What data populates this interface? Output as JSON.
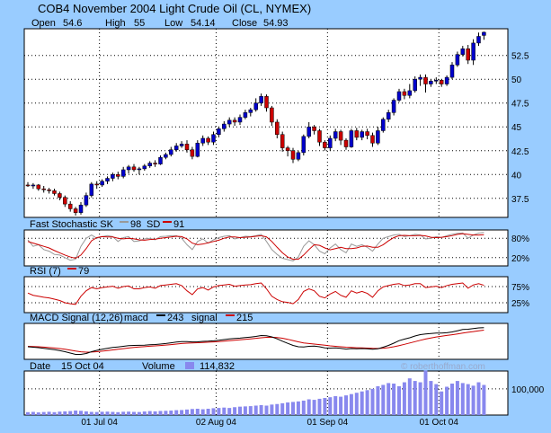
{
  "chart_data": {
    "type": "candlestick",
    "title": "COB4  November 2004 Light Crude Oil (CL, NYMEX)",
    "ohlc_header": {
      "open_label": "Open",
      "open_value": "54.6",
      "high_label": "High",
      "high_value": "55",
      "low_label": "Low",
      "low_value": "54.14",
      "close_label": "Close",
      "close_value": "54.93"
    },
    "price_axis": {
      "ticks": [
        "52.5",
        "50",
        "47.5",
        "45",
        "42.5",
        "40",
        "37.5"
      ],
      "tick_values": [
        52.5,
        50,
        47.5,
        45,
        42.5,
        40,
        37.5
      ],
      "ylim": [
        35.5,
        55.3
      ]
    },
    "x_axis": {
      "ticks": [
        "01 Jul 04",
        "02 Aug 04",
        "01 Sep 04",
        "01 Oct 04"
      ],
      "tick_index": [
        14,
        36,
        57,
        78
      ]
    },
    "candles": [
      [
        38.9,
        38.85,
        39.2,
        38.7
      ],
      [
        38.8,
        38.9,
        39.1,
        38.5
      ],
      [
        38.9,
        38.5,
        39.0,
        38.3
      ],
      [
        38.5,
        38.4,
        38.8,
        38.1
      ],
      [
        38.4,
        38.3,
        38.6,
        38.0
      ],
      [
        38.3,
        38.0,
        38.5,
        37.8
      ],
      [
        38.0,
        37.6,
        38.2,
        37.3
      ],
      [
        37.6,
        36.9,
        37.8,
        36.6
      ],
      [
        36.9,
        36.4,
        37.2,
        36.1
      ],
      [
        36.4,
        36.0,
        36.6,
        35.7
      ],
      [
        36.0,
        36.8,
        37.1,
        35.8
      ],
      [
        36.8,
        37.8,
        38.1,
        36.6
      ],
      [
        37.8,
        39.0,
        39.2,
        37.6
      ],
      [
        39.0,
        38.9,
        39.3,
        38.5
      ],
      [
        38.9,
        39.3,
        39.5,
        38.7
      ],
      [
        39.3,
        39.6,
        39.8,
        39.0
      ],
      [
        39.6,
        40.0,
        40.2,
        39.3
      ],
      [
        40.0,
        39.8,
        40.3,
        39.5
      ],
      [
        39.8,
        40.5,
        40.8,
        39.6
      ],
      [
        40.5,
        40.8,
        41.0,
        40.1
      ],
      [
        40.8,
        40.5,
        41.1,
        40.3
      ],
      [
        40.5,
        40.6,
        40.8,
        40.0
      ],
      [
        40.6,
        40.9,
        41.1,
        40.4
      ],
      [
        40.9,
        41.2,
        41.4,
        40.7
      ],
      [
        41.2,
        41.1,
        41.5,
        40.8
      ],
      [
        41.1,
        41.8,
        42.0,
        41.0
      ],
      [
        41.8,
        42.1,
        42.3,
        41.6
      ],
      [
        42.1,
        42.6,
        42.9,
        41.9
      ],
      [
        42.6,
        43.0,
        43.3,
        42.4
      ],
      [
        43.0,
        43.2,
        43.5,
        42.8
      ],
      [
        43.2,
        42.6,
        43.6,
        42.3
      ],
      [
        42.6,
        41.9,
        42.9,
        41.6
      ],
      [
        41.9,
        43.3,
        43.6,
        41.8
      ],
      [
        43.3,
        43.8,
        44.1,
        43.0
      ],
      [
        43.8,
        43.4,
        44.0,
        43.1
      ],
      [
        43.4,
        44.2,
        44.5,
        43.1
      ],
      [
        44.2,
        44.8,
        45.0,
        43.9
      ],
      [
        44.8,
        45.3,
        45.6,
        44.5
      ],
      [
        45.3,
        45.7,
        46.0,
        45.0
      ],
      [
        45.7,
        45.5,
        46.0,
        45.1
      ],
      [
        45.5,
        46.0,
        46.3,
        45.2
      ],
      [
        46.0,
        46.5,
        46.8,
        45.8
      ],
      [
        46.5,
        46.8,
        47.0,
        46.1
      ],
      [
        46.8,
        47.5,
        48.0,
        46.6
      ],
      [
        47.5,
        48.2,
        48.5,
        47.2
      ],
      [
        48.2,
        47.0,
        48.4,
        46.6
      ],
      [
        47.0,
        45.5,
        47.2,
        45.1
      ],
      [
        45.5,
        44.2,
        45.8,
        43.8
      ],
      [
        44.2,
        42.8,
        44.5,
        42.4
      ],
      [
        42.8,
        42.5,
        43.0,
        41.9
      ],
      [
        42.5,
        41.6,
        42.8,
        41.2
      ],
      [
        41.6,
        42.3,
        42.5,
        41.4
      ],
      [
        42.3,
        44.0,
        44.2,
        42.0
      ],
      [
        44.0,
        45.0,
        45.5,
        43.8
      ],
      [
        45.0,
        44.6,
        45.2,
        44.2
      ],
      [
        44.6,
        43.4,
        44.8,
        43.0
      ],
      [
        43.4,
        42.8,
        43.6,
        42.5
      ],
      [
        42.8,
        43.8,
        44.1,
        42.5
      ],
      [
        43.8,
        44.5,
        44.8,
        43.5
      ],
      [
        44.5,
        43.6,
        44.7,
        43.1
      ],
      [
        43.6,
        42.9,
        43.8,
        42.6
      ],
      [
        42.9,
        44.6,
        44.8,
        42.8
      ],
      [
        44.6,
        43.9,
        44.9,
        43.6
      ],
      [
        43.9,
        44.5,
        44.7,
        43.6
      ],
      [
        44.5,
        44.1,
        44.8,
        43.7
      ],
      [
        44.1,
        43.3,
        44.4,
        42.9
      ],
      [
        43.3,
        44.6,
        45.0,
        43.1
      ],
      [
        44.6,
        45.8,
        46.0,
        44.4
      ],
      [
        45.8,
        46.5,
        46.8,
        45.5
      ],
      [
        46.5,
        47.8,
        48.0,
        46.2
      ],
      [
        47.8,
        48.7,
        49.0,
        47.6
      ],
      [
        48.7,
        48.3,
        49.0,
        47.9
      ],
      [
        48.3,
        48.8,
        49.5,
        48.0
      ],
      [
        48.8,
        50.0,
        50.3,
        48.6
      ],
      [
        50.0,
        50.2,
        50.5,
        49.3
      ],
      [
        50.2,
        49.5,
        50.5,
        48.6
      ],
      [
        49.5,
        49.8,
        50.0,
        49.2
      ],
      [
        49.8,
        49.9,
        50.2,
        49.5
      ],
      [
        49.9,
        49.5,
        50.0,
        49.2
      ],
      [
        49.5,
        50.2,
        50.4,
        49.3
      ],
      [
        50.2,
        51.5,
        51.8,
        50.0
      ],
      [
        51.5,
        52.6,
        52.9,
        51.3
      ],
      [
        52.6,
        53.2,
        53.5,
        52.4
      ],
      [
        53.2,
        52.0,
        53.6,
        51.6
      ],
      [
        52.0,
        53.8,
        54.2,
        51.5
      ],
      [
        53.8,
        54.5,
        54.9,
        53.5
      ],
      [
        54.6,
        54.93,
        55.0,
        54.14
      ]
    ],
    "stochastic": {
      "label": "Fast Stochastic SK",
      "sk_value": "98",
      "sd_label": "SD",
      "sd_value": "91",
      "ticks": [
        "80%",
        "20%"
      ],
      "tick_values": [
        80,
        20
      ],
      "sk_color": "#999999",
      "sd_color": "#cc0000",
      "sk": [
        75,
        55,
        60,
        45,
        40,
        30,
        28,
        20,
        12,
        15,
        55,
        80,
        90,
        80,
        85,
        88,
        85,
        70,
        82,
        85,
        70,
        72,
        78,
        80,
        75,
        85,
        86,
        88,
        88,
        80,
        60,
        45,
        70,
        78,
        65,
        75,
        82,
        86,
        88,
        78,
        82,
        86,
        85,
        88,
        92,
        70,
        45,
        30,
        18,
        14,
        10,
        22,
        55,
        72,
        60,
        40,
        32,
        50,
        62,
        45,
        35,
        62,
        55,
        60,
        52,
        40,
        62,
        80,
        85,
        90,
        92,
        85,
        88,
        92,
        90,
        78,
        80,
        85,
        82,
        88,
        92,
        95,
        96,
        80,
        90,
        96,
        98
      ],
      "sd": [
        70,
        65,
        60,
        55,
        50,
        42,
        35,
        28,
        22,
        18,
        28,
        48,
        72,
        82,
        85,
        84,
        84,
        80,
        78,
        80,
        78,
        75,
        74,
        76,
        77,
        80,
        82,
        84,
        86,
        85,
        78,
        65,
        60,
        62,
        66,
        70,
        74,
        80,
        84,
        84,
        82,
        83,
        84,
        86,
        88,
        84,
        70,
        52,
        35,
        22,
        15,
        15,
        28,
        45,
        60,
        58,
        50,
        44,
        48,
        52,
        48,
        48,
        50,
        55,
        56,
        52,
        52,
        60,
        72,
        82,
        88,
        89,
        88,
        88,
        89,
        87,
        83,
        82,
        83,
        85,
        88,
        92,
        94,
        92,
        90,
        90,
        91
      ]
    },
    "rsi": {
      "label": "RSI (7)",
      "value": "79",
      "ticks": [
        "75%",
        "25%"
      ],
      "tick_values": [
        75,
        25
      ],
      "color": "#cc0000",
      "values": [
        55,
        48,
        45,
        42,
        40,
        36,
        32,
        25,
        22,
        20,
        45,
        62,
        72,
        68,
        72,
        74,
        76,
        70,
        75,
        77,
        68,
        68,
        72,
        74,
        70,
        78,
        80,
        82,
        84,
        78,
        62,
        50,
        68,
        72,
        64,
        74,
        78,
        80,
        82,
        76,
        78,
        80,
        81,
        84,
        86,
        68,
        45,
        35,
        28,
        26,
        22,
        35,
        60,
        68,
        62,
        45,
        40,
        52,
        60,
        48,
        42,
        62,
        55,
        60,
        54,
        42,
        62,
        74,
        78,
        82,
        84,
        78,
        80,
        84,
        84,
        72,
        74,
        76,
        72,
        78,
        82,
        84,
        86,
        70,
        80,
        84,
        79
      ]
    },
    "macd": {
      "label": "MACD Signal (12,26)",
      "macd_label": "macd",
      "macd_value": "243",
      "signal_label": "signal",
      "signal_value": "215",
      "macd_color": "#000000",
      "signal_color": "#cc0000",
      "macd_values": [
        0.3,
        0.25,
        0.2,
        0.12,
        0.05,
        -0.03,
        -0.12,
        -0.25,
        -0.4,
        -0.55,
        -0.55,
        -0.45,
        -0.25,
        -0.1,
        0.02,
        0.12,
        0.22,
        0.28,
        0.35,
        0.42,
        0.45,
        0.46,
        0.48,
        0.52,
        0.55,
        0.6,
        0.66,
        0.74,
        0.82,
        0.88,
        0.88,
        0.84,
        0.85,
        0.9,
        0.92,
        0.96,
        1.02,
        1.1,
        1.18,
        1.22,
        1.26,
        1.32,
        1.38,
        1.45,
        1.55,
        1.52,
        1.4,
        1.18,
        0.92,
        0.68,
        0.45,
        0.3,
        0.28,
        0.35,
        0.38,
        0.3,
        0.18,
        0.15,
        0.18,
        0.12,
        0.04,
        0.1,
        0.08,
        0.1,
        0.08,
        0.02,
        0.08,
        0.25,
        0.45,
        0.7,
        0.98,
        1.15,
        1.3,
        1.5,
        1.65,
        1.72,
        1.78,
        1.82,
        1.82,
        1.86,
        1.95,
        2.08,
        2.22,
        2.25,
        2.32,
        2.4,
        2.43
      ],
      "signal_values": [
        0.35,
        0.33,
        0.3,
        0.26,
        0.21,
        0.16,
        0.1,
        0.03,
        -0.07,
        -0.18,
        -0.26,
        -0.3,
        -0.29,
        -0.25,
        -0.19,
        -0.12,
        -0.05,
        0.02,
        0.09,
        0.16,
        0.22,
        0.27,
        0.31,
        0.36,
        0.4,
        0.44,
        0.49,
        0.54,
        0.6,
        0.66,
        0.7,
        0.73,
        0.75,
        0.78,
        0.81,
        0.84,
        0.88,
        0.93,
        0.98,
        1.03,
        1.08,
        1.13,
        1.18,
        1.24,
        1.3,
        1.35,
        1.36,
        1.33,
        1.25,
        1.13,
        0.99,
        0.85,
        0.73,
        0.66,
        0.6,
        0.54,
        0.47,
        0.4,
        0.35,
        0.3,
        0.25,
        0.22,
        0.19,
        0.17,
        0.15,
        0.12,
        0.11,
        0.14,
        0.2,
        0.3,
        0.43,
        0.57,
        0.72,
        0.87,
        1.02,
        1.16,
        1.28,
        1.39,
        1.48,
        1.56,
        1.64,
        1.73,
        1.82,
        1.91,
        1.99,
        2.08,
        2.15
      ],
      "ylim": [
        -0.8,
        2.6
      ]
    },
    "volume": {
      "date_label": "Date",
      "date_value": "15 Oct 04",
      "label": "Volume",
      "value": "114,832",
      "color": "#8888ee",
      "tick": "100,000",
      "tick_value": 100000,
      "ylim": [
        0,
        168000
      ],
      "values": [
        11000,
        12000,
        10000,
        11500,
        12500,
        11000,
        13000,
        14000,
        15000,
        17000,
        16000,
        14000,
        12000,
        11500,
        12500,
        13000,
        12000,
        11000,
        12500,
        13000,
        12000,
        11500,
        13500,
        15000,
        14000,
        15500,
        16000,
        17000,
        18500,
        19000,
        21000,
        23000,
        24000,
        22000,
        24000,
        26000,
        27000,
        28500,
        27000,
        30000,
        32000,
        33000,
        34000,
        36000,
        38000,
        36000,
        40000,
        42000,
        45000,
        48000,
        50000,
        52000,
        55000,
        60000,
        58000,
        62000,
        65000,
        68000,
        72000,
        70000,
        75000,
        80000,
        85000,
        90000,
        95000,
        100000,
        110000,
        115000,
        122000,
        120000,
        110000,
        125000,
        140000,
        130000,
        125000,
        170000,
        130000,
        118000,
        90000,
        108000,
        120000,
        130000,
        122000,
        118000,
        112000,
        125000,
        114832
      ]
    },
    "watermark": "© roberthoffman.com"
  }
}
